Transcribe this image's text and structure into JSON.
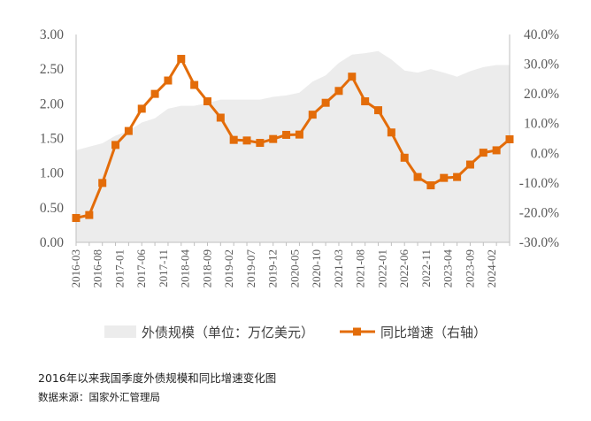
{
  "chart_data": {
    "type": "area+line",
    "x": [
      "2016-03",
      "2016-06",
      "2016-09",
      "2016-12",
      "2017-03",
      "2017-06",
      "2017-09",
      "2017-12",
      "2018-03",
      "2018-06",
      "2018-09",
      "2018-12",
      "2019-03",
      "2019-06",
      "2019-09",
      "2019-12",
      "2020-03",
      "2020-06",
      "2020-09",
      "2020-12",
      "2021-03",
      "2021-06",
      "2021-09",
      "2021-12",
      "2022-03",
      "2022-06",
      "2022-09",
      "2022-12",
      "2023-03",
      "2023-06",
      "2023-09",
      "2023-12",
      "2024-03",
      "2024-06"
    ],
    "xticklabels": [
      "2016-03",
      "2016-08",
      "2017-01",
      "2017-06",
      "2017-11",
      "2018-04",
      "2018-09",
      "2019-02",
      "2019-07",
      "2019-12",
      "2020-05",
      "2020-10",
      "2021-03",
      "2021-08",
      "2022-01",
      "2022-06",
      "2022-11",
      "2023-04",
      "2023-09",
      "2024-02"
    ],
    "series": [
      {
        "name": "外债规模（单位：万亿美元）",
        "type": "area",
        "axis": "left",
        "color": "#ececec",
        "values": [
          1.33,
          1.38,
          1.43,
          1.54,
          1.61,
          1.73,
          1.79,
          1.93,
          1.97,
          1.97,
          2.01,
          2.06,
          2.06,
          2.06,
          2.06,
          2.1,
          2.12,
          2.16,
          2.32,
          2.41,
          2.59,
          2.71,
          2.73,
          2.76,
          2.64,
          2.48,
          2.45,
          2.5,
          2.45,
          2.39,
          2.47,
          2.53,
          2.56,
          2.56
        ]
      },
      {
        "name": "同比增速（右轴）",
        "type": "line",
        "axis": "right",
        "color": "#e36c09",
        "values": [
          -21.8,
          -20.8,
          -10.0,
          2.8,
          7.5,
          15.0,
          20.0,
          24.5,
          31.8,
          23.0,
          17.5,
          12.0,
          4.5,
          4.3,
          3.5,
          4.8,
          6.2,
          6.3,
          13.0,
          17.0,
          21.0,
          25.8,
          17.5,
          14.5,
          7.0,
          -1.5,
          -8.0,
          -10.8,
          -8.3,
          -8.0,
          -3.8,
          0.2,
          1.0,
          4.7
        ]
      }
    ],
    "ylabel_left": "",
    "ylabel_right": "",
    "ylim_left": [
      0,
      3
    ],
    "yticks_left": [
      "0.00",
      "0.50",
      "1.00",
      "1.50",
      "2.00",
      "2.50",
      "3.00"
    ],
    "ylim_right": [
      -30,
      40
    ],
    "yticks_right": [
      "-30.0%",
      "-20.0%",
      "-10.0%",
      "0.0%",
      "10.0%",
      "20.0%",
      "30.0%",
      "40.0%"
    ],
    "grid": "none",
    "legend_position": "bottom",
    "title": "2016年以来我国季度外债规模和同比增速变化图",
    "source": "数据来源：国家外汇管理局"
  }
}
